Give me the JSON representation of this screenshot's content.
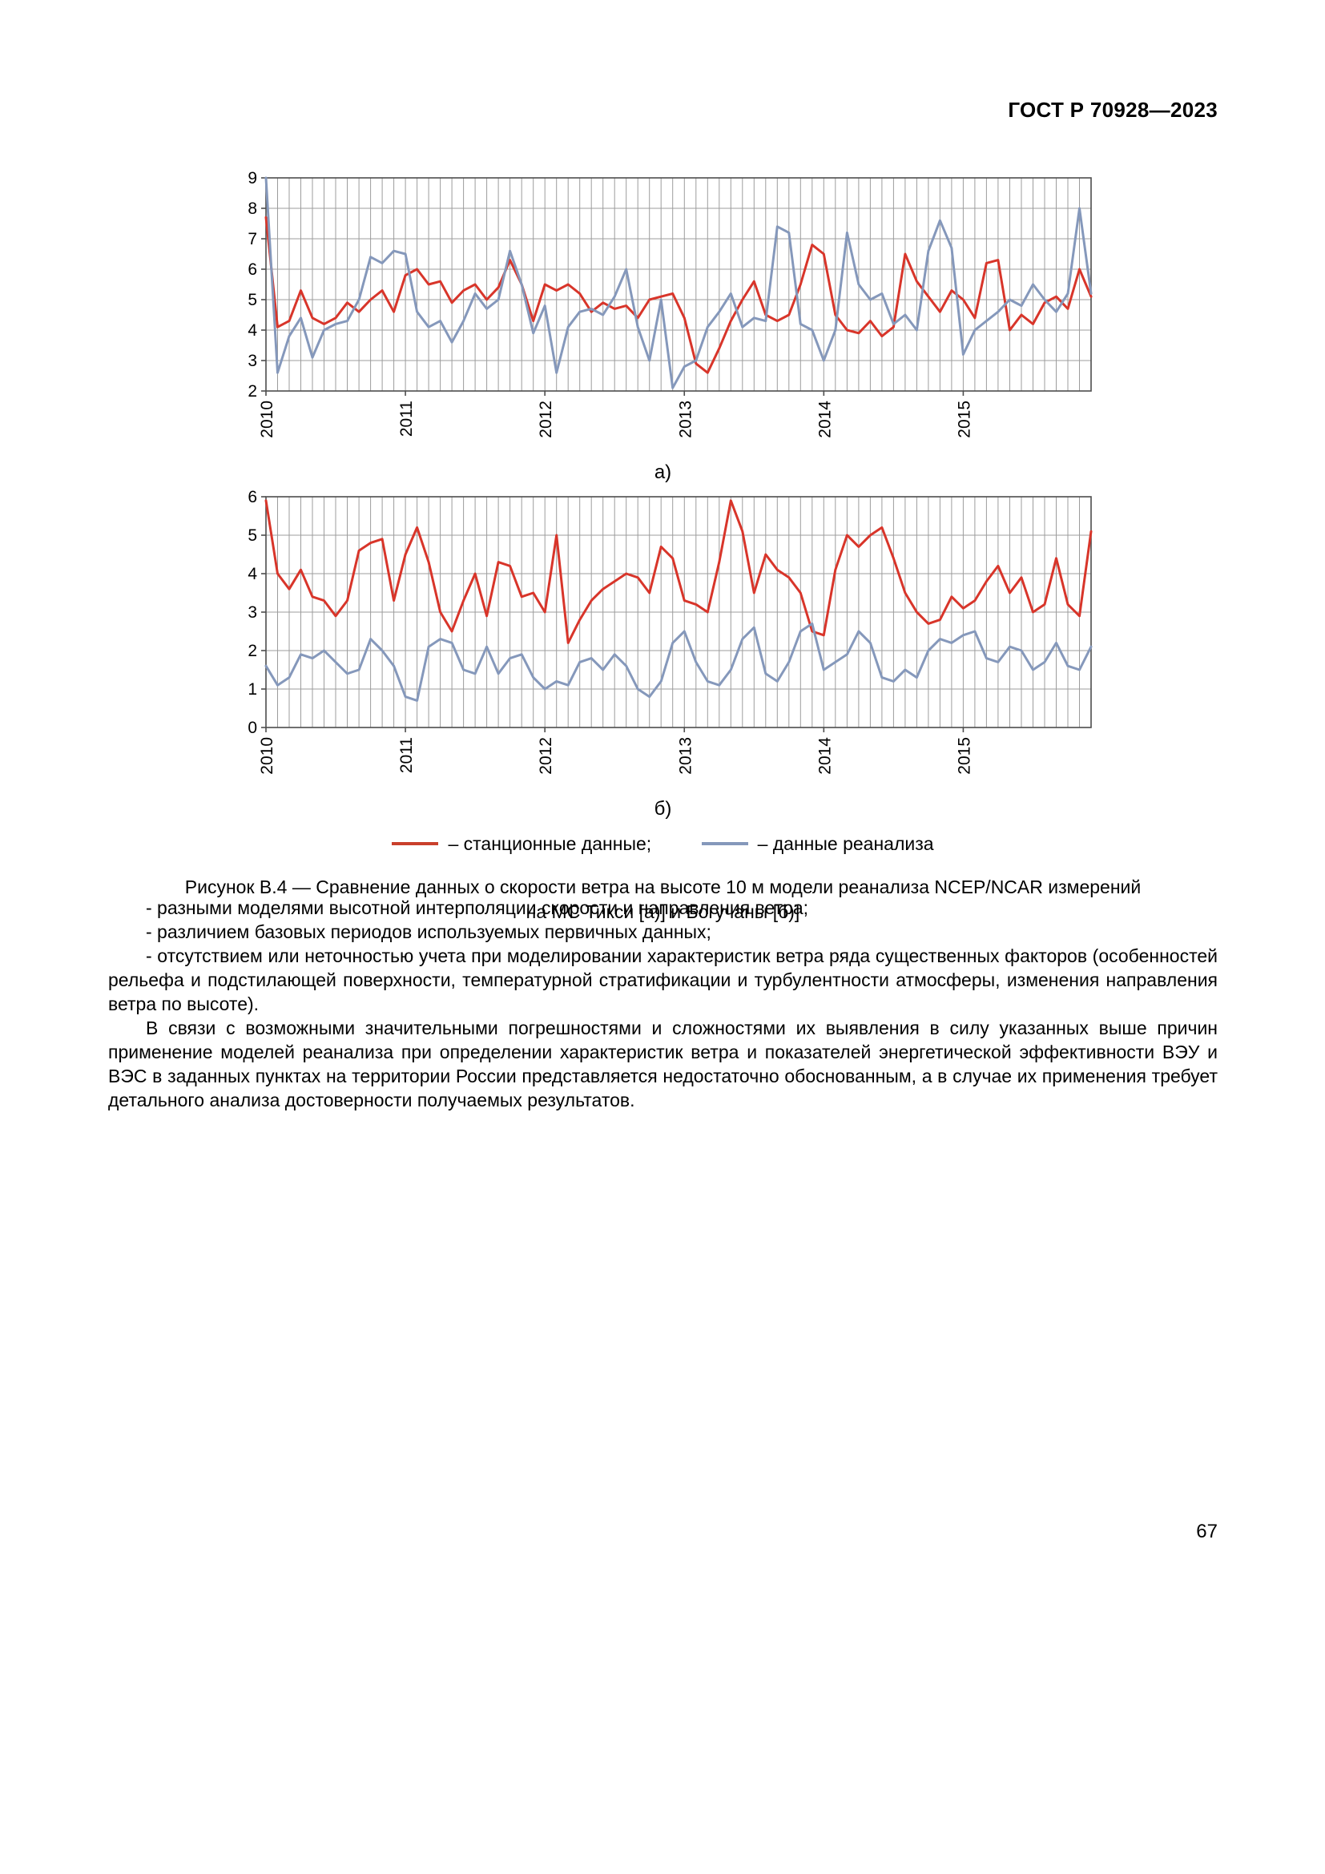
{
  "header": {
    "title": "ГОСТ Р 70928—2023"
  },
  "figure": {
    "sublabels": [
      "а)",
      "б)"
    ],
    "legend": [
      {
        "label": "– станционные данные;",
        "color": "#c9402c"
      },
      {
        "label": "– данные реанализа",
        "color": "#8598bb"
      }
    ],
    "caption_lines": [
      "Рисунок В.4 — Сравнение данных о скорости ветра на высоте 10 м модели реанализа NCEP/NCAR измерений",
      "на МС Тикси [а)] и Богучаны [б)]"
    ]
  },
  "chart_data": [
    {
      "type": "line",
      "sublabel": "а)",
      "grid": true,
      "n_points": 72,
      "ylim": [
        2,
        9
      ],
      "x_tick_labels": [
        "2010",
        "2011",
        "2012",
        "2013",
        "2014",
        "2015"
      ],
      "x_tick_indices": [
        0,
        12,
        24,
        36,
        48,
        60
      ],
      "series": [
        {
          "name": "станционные данные",
          "color": "#d8352a",
          "values": [
            7.7,
            4.1,
            4.3,
            5.3,
            4.4,
            4.2,
            4.4,
            4.9,
            4.6,
            5.0,
            5.3,
            4.6,
            5.8,
            6.0,
            5.5,
            5.6,
            4.9,
            5.3,
            5.5,
            5.0,
            5.4,
            6.3,
            5.5,
            4.3,
            5.5,
            5.3,
            5.5,
            5.2,
            4.6,
            4.9,
            4.7,
            4.8,
            4.4,
            5.0,
            5.1,
            5.2,
            4.4,
            2.9,
            2.6,
            3.4,
            4.3,
            5.0,
            5.6,
            4.5,
            4.3,
            4.5,
            5.5,
            6.8,
            6.5,
            4.5,
            4.0,
            3.9,
            4.3,
            3.8,
            4.1,
            6.5,
            5.6,
            5.1,
            4.6,
            5.3,
            5.0,
            4.4,
            6.2,
            6.3,
            4.0,
            4.5,
            4.2,
            4.9,
            5.1,
            4.7,
            6.0,
            5.1
          ]
        },
        {
          "name": "данные реанализа",
          "color": "#8598bb",
          "values": [
            9.0,
            2.6,
            3.8,
            4.4,
            3.1,
            4.0,
            4.2,
            4.3,
            5.0,
            6.4,
            6.2,
            6.6,
            6.5,
            4.6,
            4.1,
            4.3,
            3.6,
            4.3,
            5.2,
            4.7,
            5.0,
            6.6,
            5.5,
            3.9,
            4.8,
            2.6,
            4.1,
            4.6,
            4.7,
            4.5,
            5.1,
            6.0,
            4.1,
            3.0,
            5.0,
            2.1,
            2.8,
            3.0,
            4.1,
            4.6,
            5.2,
            4.1,
            4.4,
            4.3,
            7.4,
            7.2,
            4.2,
            4.0,
            3.0,
            4.0,
            7.2,
            5.5,
            5.0,
            5.2,
            4.2,
            4.5,
            4.0,
            6.6,
            7.6,
            6.7,
            3.2,
            4.0,
            4.3,
            4.6,
            5.0,
            4.8,
            5.5,
            5.0,
            4.6,
            5.2,
            8.0,
            5.2
          ]
        }
      ]
    },
    {
      "type": "line",
      "sublabel": "б)",
      "grid": true,
      "n_points": 72,
      "ylim": [
        0,
        6
      ],
      "x_tick_labels": [
        "2010",
        "2011",
        "2012",
        "2013",
        "2014",
        "2015"
      ],
      "x_tick_indices": [
        0,
        12,
        24,
        36,
        48,
        60
      ],
      "series": [
        {
          "name": "станционные данные",
          "color": "#d8352a",
          "values": [
            5.9,
            4.0,
            3.6,
            4.1,
            3.4,
            3.3,
            2.9,
            3.3,
            4.6,
            4.8,
            4.9,
            3.3,
            4.5,
            5.2,
            4.3,
            3.0,
            2.5,
            3.3,
            4.0,
            2.9,
            4.3,
            4.2,
            3.4,
            3.5,
            3.0,
            5.0,
            2.2,
            2.8,
            3.3,
            3.6,
            3.8,
            4.0,
            3.9,
            3.5,
            4.7,
            4.4,
            3.3,
            3.2,
            3.0,
            4.3,
            5.9,
            5.1,
            3.5,
            4.5,
            4.1,
            3.9,
            3.5,
            2.5,
            2.4,
            4.1,
            5.0,
            4.7,
            5.0,
            5.2,
            4.4,
            3.5,
            3.0,
            2.7,
            2.8,
            3.4,
            3.1,
            3.3,
            3.8,
            4.2,
            3.5,
            3.9,
            3.0,
            3.2,
            4.4,
            3.2,
            2.9,
            5.1
          ]
        },
        {
          "name": "данные реанализа",
          "color": "#8598bb",
          "values": [
            1.6,
            1.1,
            1.3,
            1.9,
            1.8,
            2.0,
            1.7,
            1.4,
            1.5,
            2.3,
            2.0,
            1.6,
            0.8,
            0.7,
            2.1,
            2.3,
            2.2,
            1.5,
            1.4,
            2.1,
            1.4,
            1.8,
            1.9,
            1.3,
            1.0,
            1.2,
            1.1,
            1.7,
            1.8,
            1.5,
            1.9,
            1.6,
            1.0,
            0.8,
            1.2,
            2.2,
            2.5,
            1.7,
            1.2,
            1.1,
            1.5,
            2.3,
            2.6,
            1.4,
            1.2,
            1.7,
            2.5,
            2.7,
            1.5,
            1.7,
            1.9,
            2.5,
            2.2,
            1.3,
            1.2,
            1.5,
            1.3,
            2.0,
            2.3,
            2.2,
            2.4,
            2.5,
            1.8,
            1.7,
            2.1,
            2.0,
            1.5,
            1.7,
            2.2,
            1.6,
            1.5,
            2.1
          ]
        }
      ]
    }
  ],
  "paragraphs": [
    "- разными моделями высотной интерполяции скорости и направления ветра;",
    "- различием базовых периодов используемых первичных данных;",
    "- отсутствием или неточностью учета при моделировании характеристик ветра ряда существенных факторов (особенностей рельефа и подстилающей поверхности, температурной стратификации и турбулентности атмосферы, изменения направления ветра по высоте).",
    "В связи с возможными значительными погрешностями и сложностями их выявления в силу указанных выше причин применение моделей реанализа при определении характеристик ветра и показателей энергетической эффективности ВЭУ и ВЭС в заданных пунктах на территории России представляется недостаточно обоснованным, а в случае их применения требует детального анализа достоверности получаемых результатов."
  ],
  "footer": {
    "page_number": "67"
  }
}
